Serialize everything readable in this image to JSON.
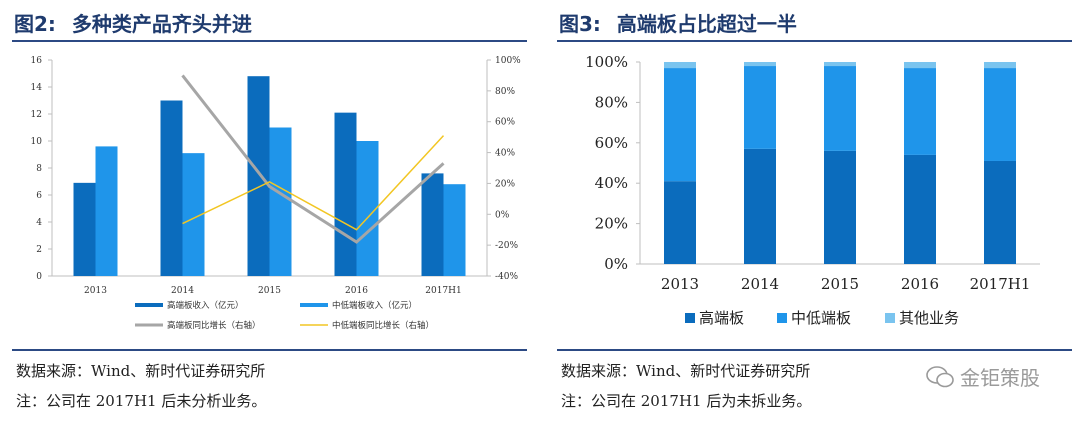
{
  "left": {
    "title_num": "图2:",
    "title_text": "多种类产品齐头并进",
    "source": "数据来源：Wind、新时代证券研究所",
    "note": "注：公司在 2017H1 后未分析业务。"
  },
  "right": {
    "title_num": "图3:",
    "title_text": "高端板占比超过一半",
    "source": "数据来源：Wind、新时代证券研究所",
    "note": "注：公司在 2017H1 后为未拆业务。"
  },
  "watermark": "金钜策股",
  "colors": {
    "dark_blue": "#0b6cbd",
    "mid_blue": "#1f95ea",
    "light_blue": "#7ac4ef",
    "gray_line": "#a6a6a6",
    "yellow_line": "#f2c623",
    "title_blue": "#1f3b6e"
  },
  "chart_data": [
    {
      "type": "bar",
      "categories": [
        "2013",
        "2014",
        "2015",
        "2016",
        "2017H1"
      ],
      "series": [
        {
          "name": "高端板收入（亿元）",
          "axis": "left",
          "values": [
            6.9,
            13.0,
            14.8,
            12.1,
            7.6
          ]
        },
        {
          "name": "中低端板收入（亿元）",
          "axis": "left",
          "values": [
            9.6,
            9.1,
            11.0,
            10.0,
            6.8
          ]
        },
        {
          "name": "高端板同比增长（右轴）",
          "type": "line",
          "axis": "right",
          "values": [
            null,
            90,
            18,
            -18,
            33
          ]
        },
        {
          "name": "中低端板同比增长（右轴）",
          "type": "line",
          "axis": "right",
          "values": [
            null,
            -6,
            21,
            -10,
            51
          ]
        }
      ],
      "ylim": [
        0,
        16
      ],
      "yticks": [
        "0",
        "2",
        "4",
        "6",
        "8",
        "10",
        "12",
        "14",
        "16"
      ],
      "y2lim": [
        -40,
        100
      ],
      "y2ticks": [
        "-40%",
        "-20%",
        "0%",
        "20%",
        "40%",
        "60%",
        "80%",
        "100%"
      ],
      "legend_position": "bottom",
      "grid": false
    },
    {
      "type": "bar",
      "stacked": true,
      "categories": [
        "2013",
        "2014",
        "2015",
        "2016",
        "2017H1"
      ],
      "series": [
        {
          "name": "高端板",
          "values": [
            41,
            57,
            56,
            54,
            51
          ]
        },
        {
          "name": "中低端板",
          "values": [
            56,
            41,
            42,
            43,
            46
          ]
        },
        {
          "name": "其他业务",
          "values": [
            3,
            2,
            2,
            3,
            3
          ]
        }
      ],
      "ylim": [
        0,
        100
      ],
      "yticks": [
        "0%",
        "20%",
        "40%",
        "60%",
        "80%",
        "100%"
      ],
      "legend_position": "bottom",
      "grid": false
    }
  ]
}
